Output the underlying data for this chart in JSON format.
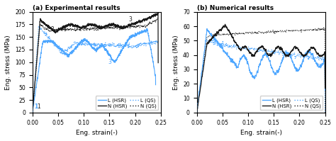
{
  "title_a": "(a) Experimental results",
  "title_b": "(b) Numerical results",
  "xlabel": "Eng. strain(-)",
  "ylabel": "Eng. stress (MPa)",
  "xlim": [
    0.0,
    0.25
  ],
  "ylim_a": [
    0,
    200
  ],
  "ylim_b": [
    0,
    70
  ],
  "yticks_a": [
    0,
    25,
    50,
    75,
    100,
    125,
    150,
    175,
    200
  ],
  "yticks_b": [
    0,
    10,
    20,
    30,
    40,
    50,
    60,
    70
  ],
  "xticks": [
    0.0,
    0.05,
    0.1,
    0.15,
    0.2,
    0.25
  ],
  "color_L": "#4da6ff",
  "color_N": "#1a1a1a",
  "figsize": [
    4.74,
    1.99
  ],
  "dpi": 100
}
